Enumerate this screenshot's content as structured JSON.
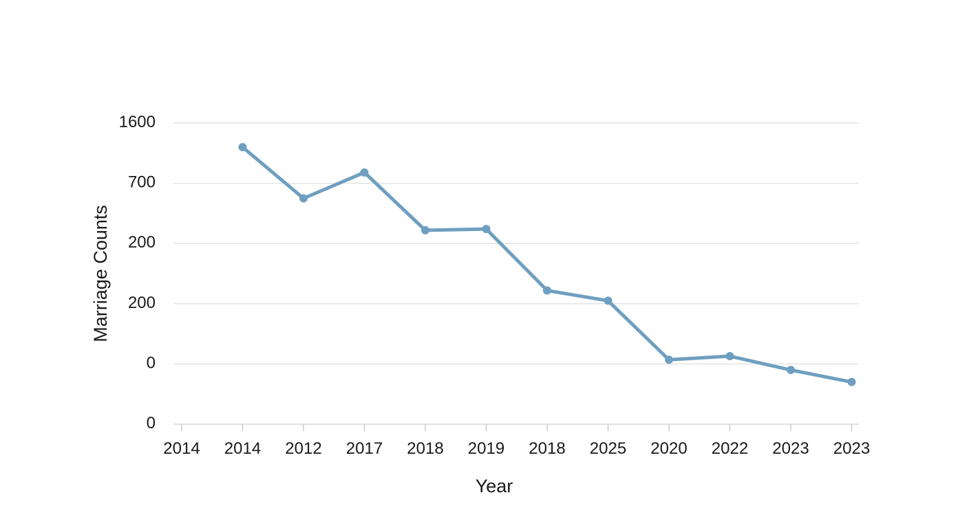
{
  "chart_data": {
    "type": "line",
    "title": "",
    "xlabel": "Year",
    "ylabel": "Marriage Counts",
    "x": [
      "2014",
      "2014",
      "2012",
      "2017",
      "2018",
      "2019",
      "2018",
      "2025",
      "2020",
      "2022",
      "2023",
      "2023"
    ],
    "y_tick_labels": [
      "0",
      "0",
      "200",
      "200",
      "700",
      "1600"
    ],
    "series": [
      {
        "values": [
          null,
          4.6,
          3.75,
          4.18,
          3.22,
          3.24,
          2.22,
          2.05,
          1.07,
          1.13,
          0.9,
          0.7
        ]
      }
    ],
    "ylim": [
      0,
      5
    ],
    "grid": true,
    "legend": "none",
    "colors": {
      "line": "#6f9fc0",
      "point": "#6f9fc0"
    }
  }
}
